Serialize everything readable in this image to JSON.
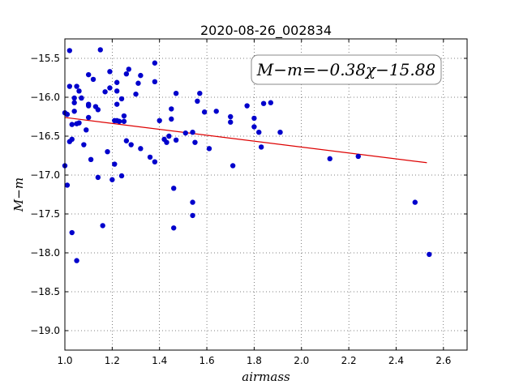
{
  "chart_data": {
    "type": "scatter",
    "title": "2020-08-26_002834",
    "xlabel": "airmass",
    "ylabel": "M−m",
    "xlim": [
      1.0,
      2.7
    ],
    "ylim": [
      -19.25,
      -15.25
    ],
    "y_inverted": true,
    "grid": true,
    "x_ticks": [
      "1.0",
      "1.2",
      "1.4",
      "1.6",
      "1.8",
      "2.0",
      "2.2",
      "2.4",
      "2.6"
    ],
    "y_ticks": [
      "−15.5",
      "−16.0",
      "−16.5",
      "−17.0",
      "−17.5",
      "−18.0",
      "−18.5",
      "−19.0"
    ],
    "annotation": "M−m=−0.38χ−15.88",
    "marker_color": "#0000cc",
    "fit_line": {
      "slope": -0.38,
      "intercept": -15.88,
      "x_range": [
        1.0,
        2.53
      ],
      "color": "#dd0000"
    },
    "points": [
      {
        "x": 1.0,
        "y": -16.88
      },
      {
        "x": 1.0,
        "y": -16.2
      },
      {
        "x": 1.01,
        "y": -16.22
      },
      {
        "x": 1.01,
        "y": -17.13
      },
      {
        "x": 1.02,
        "y": -15.4
      },
      {
        "x": 1.02,
        "y": -15.86
      },
      {
        "x": 1.02,
        "y": -16.57
      },
      {
        "x": 1.03,
        "y": -16.35
      },
      {
        "x": 1.03,
        "y": -16.54
      },
      {
        "x": 1.03,
        "y": -17.74
      },
      {
        "x": 1.04,
        "y": -16.01
      },
      {
        "x": 1.04,
        "y": -16.07
      },
      {
        "x": 1.04,
        "y": -16.18
      },
      {
        "x": 1.05,
        "y": -15.86
      },
      {
        "x": 1.05,
        "y": -16.34
      },
      {
        "x": 1.05,
        "y": -18.1
      },
      {
        "x": 1.06,
        "y": -15.92
      },
      {
        "x": 1.06,
        "y": -16.33
      },
      {
        "x": 1.07,
        "y": -16.01
      },
      {
        "x": 1.07,
        "y": -16.01
      },
      {
        "x": 1.08,
        "y": -16.61
      },
      {
        "x": 1.09,
        "y": -16.42
      },
      {
        "x": 1.1,
        "y": -15.71
      },
      {
        "x": 1.1,
        "y": -16.09
      },
      {
        "x": 1.1,
        "y": -16.11
      },
      {
        "x": 1.1,
        "y": -16.26
      },
      {
        "x": 1.11,
        "y": -16.8
      },
      {
        "x": 1.12,
        "y": -15.77
      },
      {
        "x": 1.13,
        "y": -16.12
      },
      {
        "x": 1.14,
        "y": -16.16
      },
      {
        "x": 1.14,
        "y": -17.03
      },
      {
        "x": 1.15,
        "y": -15.39
      },
      {
        "x": 1.16,
        "y": -17.65
      },
      {
        "x": 1.17,
        "y": -15.93
      },
      {
        "x": 1.18,
        "y": -16.7
      },
      {
        "x": 1.19,
        "y": -15.67
      },
      {
        "x": 1.19,
        "y": -15.88
      },
      {
        "x": 1.2,
        "y": -17.06
      },
      {
        "x": 1.21,
        "y": -16.3
      },
      {
        "x": 1.21,
        "y": -16.86
      },
      {
        "x": 1.22,
        "y": -15.81
      },
      {
        "x": 1.22,
        "y": -15.92
      },
      {
        "x": 1.22,
        "y": -16.09
      },
      {
        "x": 1.22,
        "y": -16.3
      },
      {
        "x": 1.23,
        "y": -16.31
      },
      {
        "x": 1.24,
        "y": -16.02
      },
      {
        "x": 1.24,
        "y": -17.01
      },
      {
        "x": 1.25,
        "y": -16.24
      },
      {
        "x": 1.25,
        "y": -16.31
      },
      {
        "x": 1.26,
        "y": -15.7
      },
      {
        "x": 1.26,
        "y": -16.56
      },
      {
        "x": 1.27,
        "y": -15.64
      },
      {
        "x": 1.28,
        "y": -16.61
      },
      {
        "x": 1.3,
        "y": -15.96
      },
      {
        "x": 1.31,
        "y": -15.82
      },
      {
        "x": 1.32,
        "y": -15.72
      },
      {
        "x": 1.32,
        "y": -16.66
      },
      {
        "x": 1.36,
        "y": -16.77
      },
      {
        "x": 1.38,
        "y": -15.56
      },
      {
        "x": 1.38,
        "y": -15.8
      },
      {
        "x": 1.38,
        "y": -16.83
      },
      {
        "x": 1.4,
        "y": -16.3
      },
      {
        "x": 1.42,
        "y": -16.54
      },
      {
        "x": 1.43,
        "y": -16.58
      },
      {
        "x": 1.44,
        "y": -16.5
      },
      {
        "x": 1.45,
        "y": -16.15
      },
      {
        "x": 1.45,
        "y": -16.28
      },
      {
        "x": 1.46,
        "y": -17.17
      },
      {
        "x": 1.46,
        "y": -17.68
      },
      {
        "x": 1.47,
        "y": -15.95
      },
      {
        "x": 1.47,
        "y": -16.55
      },
      {
        "x": 1.51,
        "y": -16.46
      },
      {
        "x": 1.54,
        "y": -16.45
      },
      {
        "x": 1.54,
        "y": -17.35
      },
      {
        "x": 1.54,
        "y": -17.52
      },
      {
        "x": 1.55,
        "y": -16.58
      },
      {
        "x": 1.56,
        "y": -16.05
      },
      {
        "x": 1.57,
        "y": -15.95
      },
      {
        "x": 1.59,
        "y": -16.19
      },
      {
        "x": 1.61,
        "y": -16.66
      },
      {
        "x": 1.64,
        "y": -16.18
      },
      {
        "x": 1.7,
        "y": -16.25
      },
      {
        "x": 1.7,
        "y": -16.32
      },
      {
        "x": 1.71,
        "y": -16.88
      },
      {
        "x": 1.77,
        "y": -16.11
      },
      {
        "x": 1.8,
        "y": -16.27
      },
      {
        "x": 1.8,
        "y": -16.38
      },
      {
        "x": 1.82,
        "y": -16.45
      },
      {
        "x": 1.83,
        "y": -16.64
      },
      {
        "x": 1.84,
        "y": -16.08
      },
      {
        "x": 1.87,
        "y": -16.07
      },
      {
        "x": 1.91,
        "y": -16.45
      },
      {
        "x": 2.12,
        "y": -16.79
      },
      {
        "x": 2.24,
        "y": -16.76
      },
      {
        "x": 2.48,
        "y": -17.35
      },
      {
        "x": 2.54,
        "y": -18.02
      }
    ]
  }
}
